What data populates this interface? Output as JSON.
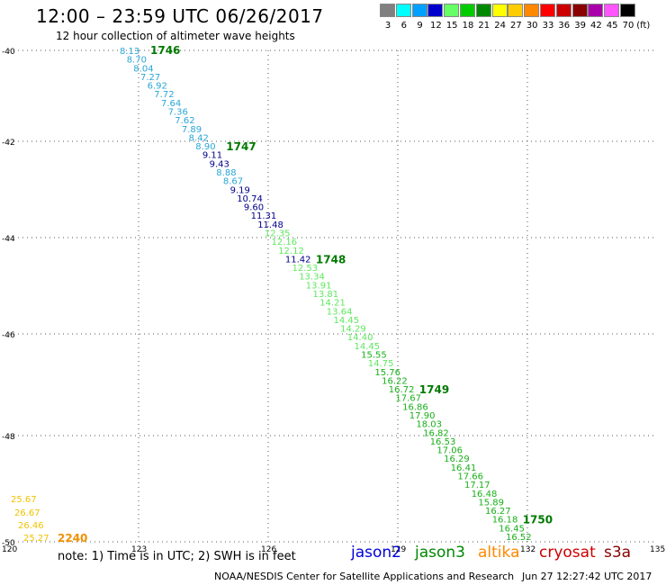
{
  "header": {
    "title": "12:00 – 23:59 UTC 06/26/2017",
    "subtitle": "12 hour collection of altimeter wave heights"
  },
  "legend": {
    "unit": "(ft)",
    "bins": [
      {
        "label": "3",
        "color": "#808080"
      },
      {
        "label": "6",
        "color": "#00ffff"
      },
      {
        "label": "9",
        "color": "#00a0ff"
      },
      {
        "label": "12",
        "color": "#0000cc"
      },
      {
        "label": "15",
        "color": "#66ff66"
      },
      {
        "label": "18",
        "color": "#00cc00"
      },
      {
        "label": "21",
        "color": "#008800"
      },
      {
        "label": "24",
        "color": "#ffff00"
      },
      {
        "label": "27",
        "color": "#ffcc00"
      },
      {
        "label": "30",
        "color": "#ff8800"
      },
      {
        "label": "33",
        "color": "#ff0000"
      },
      {
        "label": "36",
        "color": "#cc0000"
      },
      {
        "label": "39",
        "color": "#880000"
      },
      {
        "label": "42",
        "color": "#aa00aa"
      },
      {
        "label": "45",
        "color": "#ff55ff"
      },
      {
        "label": "70",
        "color": "#000000"
      }
    ]
  },
  "map": {
    "lat_ticks": [
      "-40",
      "-42",
      "-44",
      "-46",
      "-48",
      "-50"
    ],
    "lon_ticks": [
      "120",
      "123",
      "126",
      "129",
      "132",
      "135"
    ]
  },
  "colors": {
    "cyan": "#2aa6d6",
    "navy": "#00008b",
    "lightgreen": "#5ee85e",
    "green": "#18b018",
    "darkgreen": "#007a00",
    "yellow": "#f2c200",
    "orange": "#f09000"
  },
  "tracks": [
    {
      "pass_label": "1746",
      "pass_color": "darkgreen",
      "points": [
        {
          "v": "8.13",
          "c": "cyan"
        },
        {
          "v": "8.70",
          "c": "cyan"
        },
        {
          "v": "8.04",
          "c": "cyan"
        },
        {
          "v": "7.27",
          "c": "cyan"
        },
        {
          "v": "6.92",
          "c": "cyan"
        },
        {
          "v": "7.72",
          "c": "cyan"
        },
        {
          "v": "7.64",
          "c": "cyan"
        },
        {
          "v": "7.36",
          "c": "cyan"
        },
        {
          "v": "7.62",
          "c": "cyan"
        },
        {
          "v": "7.89",
          "c": "cyan"
        },
        {
          "v": "8.42",
          "c": "cyan"
        }
      ]
    },
    {
      "pass_label": "1747",
      "pass_color": "darkgreen",
      "points": [
        {
          "v": "8.90",
          "c": "cyan"
        },
        {
          "v": "9.11",
          "c": "navy"
        },
        {
          "v": "9.43",
          "c": "navy"
        },
        {
          "v": "8.88",
          "c": "cyan"
        },
        {
          "v": "8.67",
          "c": "cyan"
        },
        {
          "v": "9.19",
          "c": "navy"
        },
        {
          "v": "10.74",
          "c": "navy"
        },
        {
          "v": "9.60",
          "c": "navy"
        },
        {
          "v": "11.31",
          "c": "navy"
        },
        {
          "v": "11.48",
          "c": "navy"
        },
        {
          "v": "12.35",
          "c": "lightgreen"
        },
        {
          "v": "12.16",
          "c": "lightgreen"
        },
        {
          "v": "12.12",
          "c": "lightgreen"
        }
      ]
    },
    {
      "pass_label": "1748",
      "pass_color": "darkgreen",
      "points": [
        {
          "v": "11.42",
          "c": "navy"
        },
        {
          "v": "12.53",
          "c": "lightgreen"
        },
        {
          "v": "13.34",
          "c": "lightgreen"
        },
        {
          "v": "13.91",
          "c": "lightgreen"
        },
        {
          "v": "13.81",
          "c": "lightgreen"
        },
        {
          "v": "14.21",
          "c": "lightgreen"
        },
        {
          "v": "13.64",
          "c": "lightgreen"
        },
        {
          "v": "14.45",
          "c": "lightgreen"
        },
        {
          "v": "14.29",
          "c": "lightgreen"
        },
        {
          "v": "14.40",
          "c": "lightgreen"
        },
        {
          "v": "14.45",
          "c": "lightgreen"
        },
        {
          "v": "15.55",
          "c": "green"
        },
        {
          "v": "14.75",
          "c": "lightgreen"
        },
        {
          "v": "15.76",
          "c": "green"
        },
        {
          "v": "16.22",
          "c": "green"
        }
      ]
    },
    {
      "pass_label": "1749",
      "pass_color": "darkgreen",
      "points": [
        {
          "v": "16.72",
          "c": "green"
        },
        {
          "v": "17.67",
          "c": "green"
        },
        {
          "v": "16.86",
          "c": "green"
        },
        {
          "v": "17.90",
          "c": "green"
        },
        {
          "v": "18.03",
          "c": "green"
        },
        {
          "v": "16.82",
          "c": "green"
        },
        {
          "v": "16.53",
          "c": "green"
        },
        {
          "v": "17.06",
          "c": "green"
        },
        {
          "v": "16.29",
          "c": "green"
        },
        {
          "v": "16.41",
          "c": "green"
        },
        {
          "v": "17.66",
          "c": "green"
        },
        {
          "v": "17.17",
          "c": "green"
        },
        {
          "v": "16.48",
          "c": "green"
        },
        {
          "v": "15.89",
          "c": "green"
        },
        {
          "v": "16.27",
          "c": "green"
        }
      ]
    },
    {
      "pass_label": "1750",
      "pass_color": "darkgreen",
      "points": [
        {
          "v": "16.18",
          "c": "green"
        },
        {
          "v": "16.45",
          "c": "green"
        },
        {
          "v": "16.52",
          "c": "green"
        }
      ]
    }
  ],
  "corner_track": {
    "pass_label": "2240",
    "pass_color": "orange",
    "points": [
      {
        "v": "25.67",
        "c": "yellow"
      },
      {
        "v": "26.67",
        "c": "yellow"
      },
      {
        "v": "26.46",
        "c": "yellow"
      },
      {
        "v": "25.27",
        "c": "yellow"
      }
    ]
  },
  "note": "note:  1) Time is in UTC;  2) SWH is in feet",
  "satellites": [
    {
      "name": "jason2",
      "color": "#0000dd"
    },
    {
      "name": "jason3",
      "color": "#008800"
    },
    {
      "name": "altika",
      "color": "#ff8800"
    },
    {
      "name": "cryosat",
      "color": "#cc0000"
    },
    {
      "name": "s3a",
      "color": "#880000"
    }
  ],
  "footer": {
    "credit": "NOAA/NESDIS Center for Satellite Applications and Research",
    "timestamp": "Jun 27 12:27:42 UTC 2017"
  }
}
